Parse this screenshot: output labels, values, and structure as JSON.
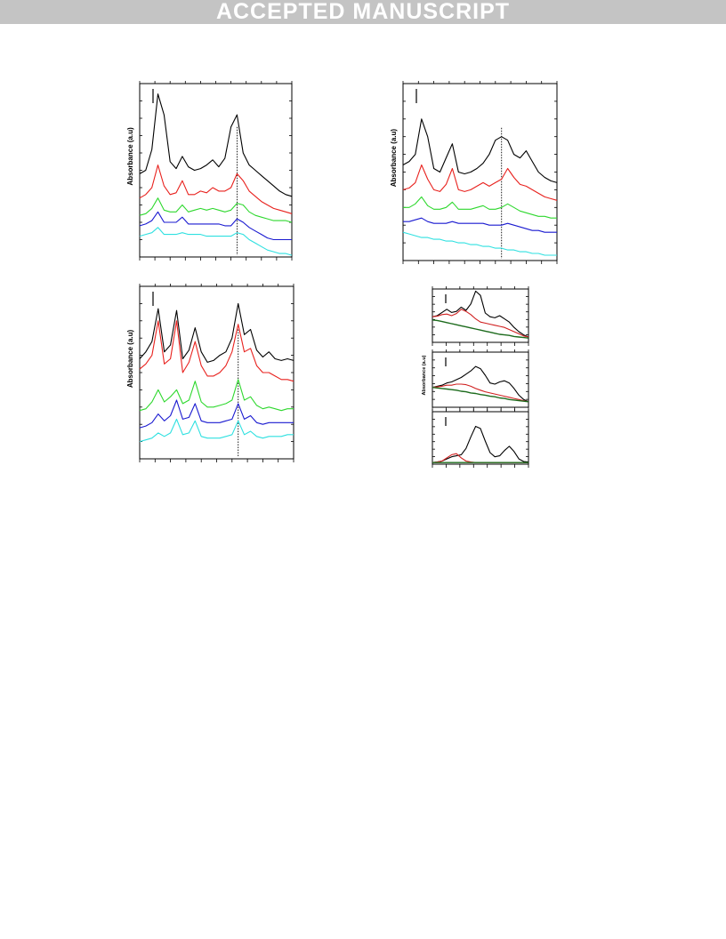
{
  "banner": {
    "text": "ACCEPTED MANUSCRIPT"
  },
  "colors": {
    "black": "#000000",
    "red": "#e8211d",
    "green": "#2ed82e",
    "blue": "#1a1ad0",
    "cyan": "#2ee0e0",
    "fit": "#d02020",
    "baseline": "#1d6b1d",
    "banner_bg": "#c4c4c4"
  },
  "chart_data": [
    {
      "id": "a",
      "type": "line",
      "ylabel": "Absorbance  (a.u)",
      "x": [
        0,
        4,
        8,
        12,
        16,
        20,
        24,
        28,
        32,
        36,
        40,
        44,
        48,
        52,
        56,
        60,
        64,
        68,
        72,
        76,
        80,
        84,
        88,
        92,
        96,
        100
      ],
      "series": [
        {
          "color": "black",
          "values": [
            0.48,
            0.5,
            0.62,
            0.94,
            0.82,
            0.55,
            0.51,
            0.58,
            0.52,
            0.5,
            0.51,
            0.53,
            0.56,
            0.52,
            0.57,
            0.75,
            0.82,
            0.6,
            0.53,
            0.5,
            0.47,
            0.44,
            0.41,
            0.38,
            0.36,
            0.35
          ]
        },
        {
          "color": "red",
          "values": [
            0.34,
            0.36,
            0.4,
            0.53,
            0.41,
            0.36,
            0.37,
            0.44,
            0.36,
            0.36,
            0.38,
            0.37,
            0.4,
            0.38,
            0.38,
            0.4,
            0.48,
            0.44,
            0.38,
            0.35,
            0.32,
            0.3,
            0.28,
            0.27,
            0.26,
            0.25
          ]
        },
        {
          "color": "green",
          "values": [
            0.24,
            0.25,
            0.28,
            0.34,
            0.27,
            0.26,
            0.26,
            0.3,
            0.26,
            0.27,
            0.28,
            0.27,
            0.28,
            0.27,
            0.26,
            0.27,
            0.31,
            0.3,
            0.26,
            0.24,
            0.23,
            0.22,
            0.21,
            0.21,
            0.21,
            0.2
          ]
        },
        {
          "color": "blue",
          "values": [
            0.18,
            0.19,
            0.21,
            0.26,
            0.2,
            0.2,
            0.2,
            0.23,
            0.19,
            0.19,
            0.19,
            0.19,
            0.19,
            0.19,
            0.18,
            0.18,
            0.22,
            0.2,
            0.17,
            0.15,
            0.13,
            0.11,
            0.1,
            0.1,
            0.1,
            0.1
          ]
        },
        {
          "color": "cyan",
          "values": [
            0.12,
            0.13,
            0.14,
            0.17,
            0.13,
            0.13,
            0.13,
            0.14,
            0.13,
            0.13,
            0.13,
            0.12,
            0.12,
            0.12,
            0.12,
            0.12,
            0.14,
            0.13,
            0.1,
            0.08,
            0.06,
            0.04,
            0.03,
            0.02,
            0.02,
            0.01
          ]
        }
      ],
      "marker_x": 64,
      "ylim": [
        0,
        1
      ],
      "xlim": [
        0,
        100
      ]
    },
    {
      "id": "b",
      "type": "line",
      "ylabel": "Absorbance  (a.u)",
      "x": [
        0,
        4,
        8,
        12,
        16,
        20,
        24,
        28,
        32,
        36,
        40,
        44,
        48,
        52,
        56,
        60,
        64,
        68,
        72,
        76,
        80,
        84,
        88,
        92,
        96,
        100
      ],
      "series": [
        {
          "color": "black",
          "values": [
            0.54,
            0.56,
            0.6,
            0.8,
            0.7,
            0.52,
            0.5,
            0.58,
            0.66,
            0.5,
            0.49,
            0.5,
            0.52,
            0.55,
            0.6,
            0.68,
            0.7,
            0.68,
            0.6,
            0.58,
            0.62,
            0.56,
            0.5,
            0.47,
            0.45,
            0.44
          ]
        },
        {
          "color": "red",
          "values": [
            0.4,
            0.41,
            0.44,
            0.54,
            0.46,
            0.4,
            0.39,
            0.43,
            0.52,
            0.4,
            0.39,
            0.4,
            0.42,
            0.44,
            0.42,
            0.44,
            0.46,
            0.52,
            0.47,
            0.43,
            0.42,
            0.4,
            0.38,
            0.36,
            0.35,
            0.34
          ]
        },
        {
          "color": "green",
          "values": [
            0.3,
            0.3,
            0.32,
            0.36,
            0.31,
            0.29,
            0.29,
            0.3,
            0.33,
            0.29,
            0.29,
            0.29,
            0.3,
            0.31,
            0.29,
            0.29,
            0.3,
            0.32,
            0.3,
            0.28,
            0.27,
            0.26,
            0.25,
            0.25,
            0.24,
            0.24
          ]
        },
        {
          "color": "blue",
          "values": [
            0.22,
            0.22,
            0.23,
            0.24,
            0.22,
            0.21,
            0.21,
            0.21,
            0.22,
            0.21,
            0.21,
            0.21,
            0.21,
            0.21,
            0.2,
            0.2,
            0.2,
            0.21,
            0.2,
            0.19,
            0.18,
            0.17,
            0.17,
            0.16,
            0.16,
            0.16
          ]
        },
        {
          "color": "cyan",
          "values": [
            0.16,
            0.15,
            0.14,
            0.13,
            0.13,
            0.12,
            0.12,
            0.11,
            0.11,
            0.1,
            0.1,
            0.09,
            0.09,
            0.08,
            0.08,
            0.07,
            0.07,
            0.06,
            0.06,
            0.05,
            0.05,
            0.04,
            0.04,
            0.03,
            0.03,
            0.03
          ]
        }
      ],
      "marker_x": 64,
      "ylim": [
        0,
        1
      ],
      "xlim": [
        0,
        100
      ]
    },
    {
      "id": "c",
      "type": "line",
      "ylabel": "Absorbance  (a.u)",
      "x": [
        0,
        4,
        8,
        12,
        16,
        20,
        24,
        28,
        32,
        36,
        40,
        44,
        48,
        52,
        56,
        60,
        64,
        68,
        72,
        76,
        80,
        84,
        88,
        92,
        96,
        100
      ],
      "series": [
        {
          "color": "black",
          "values": [
            0.58,
            0.62,
            0.68,
            0.87,
            0.62,
            0.66,
            0.86,
            0.58,
            0.63,
            0.76,
            0.62,
            0.56,
            0.57,
            0.6,
            0.62,
            0.7,
            0.9,
            0.72,
            0.75,
            0.63,
            0.59,
            0.62,
            0.58,
            0.57,
            0.58,
            0.57
          ]
        },
        {
          "color": "red",
          "values": [
            0.52,
            0.55,
            0.6,
            0.8,
            0.55,
            0.58,
            0.8,
            0.5,
            0.56,
            0.68,
            0.54,
            0.48,
            0.48,
            0.5,
            0.54,
            0.62,
            0.78,
            0.62,
            0.64,
            0.54,
            0.5,
            0.5,
            0.48,
            0.46,
            0.46,
            0.45
          ]
        },
        {
          "color": "green",
          "values": [
            0.28,
            0.29,
            0.33,
            0.4,
            0.33,
            0.36,
            0.4,
            0.32,
            0.34,
            0.45,
            0.33,
            0.3,
            0.3,
            0.31,
            0.32,
            0.34,
            0.46,
            0.34,
            0.36,
            0.31,
            0.29,
            0.3,
            0.29,
            0.28,
            0.29,
            0.29
          ]
        },
        {
          "color": "blue",
          "values": [
            0.18,
            0.19,
            0.21,
            0.26,
            0.22,
            0.25,
            0.34,
            0.23,
            0.24,
            0.32,
            0.22,
            0.21,
            0.21,
            0.21,
            0.22,
            0.23,
            0.32,
            0.23,
            0.25,
            0.21,
            0.2,
            0.21,
            0.21,
            0.21,
            0.21,
            0.21
          ]
        },
        {
          "color": "cyan",
          "values": [
            0.1,
            0.11,
            0.12,
            0.15,
            0.13,
            0.15,
            0.23,
            0.14,
            0.15,
            0.22,
            0.13,
            0.12,
            0.12,
            0.12,
            0.13,
            0.14,
            0.22,
            0.14,
            0.16,
            0.13,
            0.12,
            0.13,
            0.13,
            0.13,
            0.14,
            0.14
          ]
        }
      ],
      "marker_x": 64,
      "ylim": [
        0,
        1
      ],
      "xlim": [
        0,
        100
      ]
    },
    {
      "id": "d1",
      "type": "line",
      "ylabel": "",
      "x": [
        0,
        5,
        10,
        15,
        20,
        25,
        30,
        35,
        40,
        45,
        50,
        55,
        60,
        65,
        70,
        75,
        80,
        85,
        90,
        95,
        100
      ],
      "series": [
        {
          "color": "black",
          "values": [
            0.48,
            0.5,
            0.56,
            0.62,
            0.56,
            0.58,
            0.66,
            0.6,
            0.72,
            0.96,
            0.88,
            0.55,
            0.48,
            0.46,
            0.5,
            0.44,
            0.38,
            0.28,
            0.2,
            0.14,
            0.1
          ]
        },
        {
          "color": "fit",
          "values": [
            0.48,
            0.49,
            0.52,
            0.53,
            0.5,
            0.54,
            0.62,
            0.58,
            0.52,
            0.44,
            0.38,
            0.36,
            0.34,
            0.32,
            0.3,
            0.28,
            0.24,
            0.2,
            0.16,
            0.12,
            0.1
          ]
        },
        {
          "color": "baseline",
          "values": [
            0.42,
            0.41,
            0.39,
            0.37,
            0.35,
            0.33,
            0.31,
            0.29,
            0.27,
            0.25,
            0.23,
            0.21,
            0.19,
            0.17,
            0.15,
            0.14,
            0.13,
            0.11,
            0.1,
            0.09,
            0.08
          ]
        }
      ],
      "ylim": [
        0,
        1
      ],
      "xlim": [
        0,
        100
      ]
    },
    {
      "id": "d2",
      "type": "line",
      "ylabel": "Absorbance  (a.u)",
      "x": [
        0,
        5,
        10,
        15,
        20,
        25,
        30,
        35,
        40,
        45,
        50,
        55,
        60,
        65,
        70,
        75,
        80,
        85,
        90,
        95,
        100
      ],
      "series": [
        {
          "color": "black",
          "values": [
            0.36,
            0.38,
            0.4,
            0.44,
            0.46,
            0.5,
            0.54,
            0.6,
            0.66,
            0.74,
            0.7,
            0.58,
            0.44,
            0.42,
            0.46,
            0.48,
            0.44,
            0.34,
            0.22,
            0.14,
            0.1
          ]
        },
        {
          "color": "fit",
          "values": [
            0.36,
            0.37,
            0.38,
            0.4,
            0.4,
            0.42,
            0.42,
            0.41,
            0.38,
            0.34,
            0.31,
            0.28,
            0.26,
            0.24,
            0.22,
            0.2,
            0.18,
            0.16,
            0.14,
            0.12,
            0.1
          ]
        },
        {
          "color": "baseline",
          "values": [
            0.36,
            0.35,
            0.34,
            0.33,
            0.32,
            0.31,
            0.29,
            0.28,
            0.26,
            0.25,
            0.23,
            0.22,
            0.2,
            0.19,
            0.17,
            0.16,
            0.14,
            0.13,
            0.12,
            0.11,
            0.1
          ]
        }
      ],
      "ylim": [
        0,
        1
      ],
      "xlim": [
        0,
        100
      ]
    },
    {
      "id": "d3",
      "type": "line",
      "ylabel": "",
      "x": [
        0,
        5,
        10,
        15,
        20,
        25,
        30,
        35,
        40,
        45,
        50,
        55,
        60,
        65,
        70,
        75,
        80,
        85,
        90,
        95,
        100
      ],
      "series": [
        {
          "color": "black",
          "values": [
            0.03,
            0.04,
            0.06,
            0.1,
            0.14,
            0.16,
            0.18,
            0.3,
            0.52,
            0.72,
            0.68,
            0.44,
            0.22,
            0.14,
            0.16,
            0.26,
            0.34,
            0.24,
            0.1,
            0.05,
            0.04
          ]
        },
        {
          "color": "fit",
          "values": [
            0.03,
            0.04,
            0.06,
            0.12,
            0.18,
            0.2,
            0.12,
            0.06,
            0.04,
            0.03,
            0.03,
            0.03,
            0.03,
            0.03,
            0.03,
            0.03,
            0.03,
            0.03,
            0.03,
            0.03,
            0.03
          ]
        },
        {
          "color": "baseline",
          "values": [
            0.03,
            0.03,
            0.03,
            0.03,
            0.03,
            0.03,
            0.03,
            0.03,
            0.03,
            0.03,
            0.03,
            0.03,
            0.03,
            0.03,
            0.03,
            0.03,
            0.03,
            0.03,
            0.03,
            0.03,
            0.03
          ]
        }
      ],
      "ylim": [
        0,
        1
      ],
      "xlim": [
        0,
        100
      ]
    }
  ]
}
